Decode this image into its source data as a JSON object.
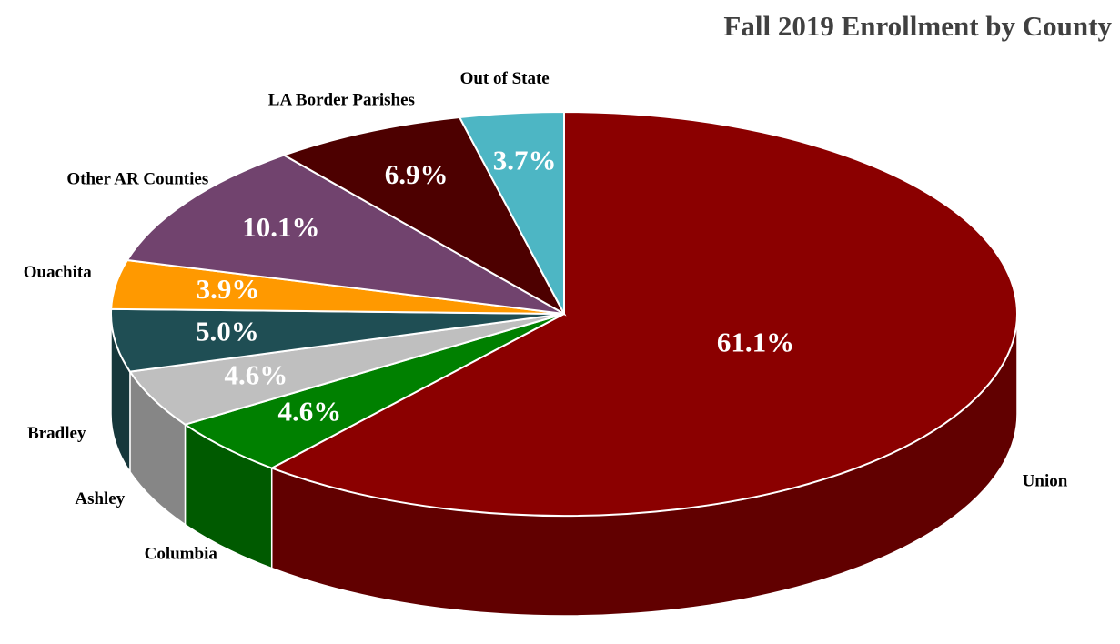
{
  "chart_data": {
    "type": "pie3d",
    "title": "Fall 2019 Enrollment by County",
    "categories": [
      "Union",
      "Columbia",
      "Ashley",
      "Bradley",
      "Ouachita",
      "Other AR Counties",
      "LA Border Parishes",
      "Out of State"
    ],
    "values": [
      61.1,
      4.6,
      4.6,
      5.0,
      3.9,
      10.1,
      6.9,
      3.7
    ],
    "value_labels": [
      "61.1%",
      "4.6%",
      "4.6%",
      "5.0%",
      "3.9%",
      "10.1%",
      "6.9%",
      "3.7%"
    ],
    "colors": [
      "#8b0000",
      "#008000",
      "#bfbfbf",
      "#1f4e54",
      "#ff9900",
      "#71436e",
      "#4d0000",
      "#4db6c4"
    ]
  }
}
